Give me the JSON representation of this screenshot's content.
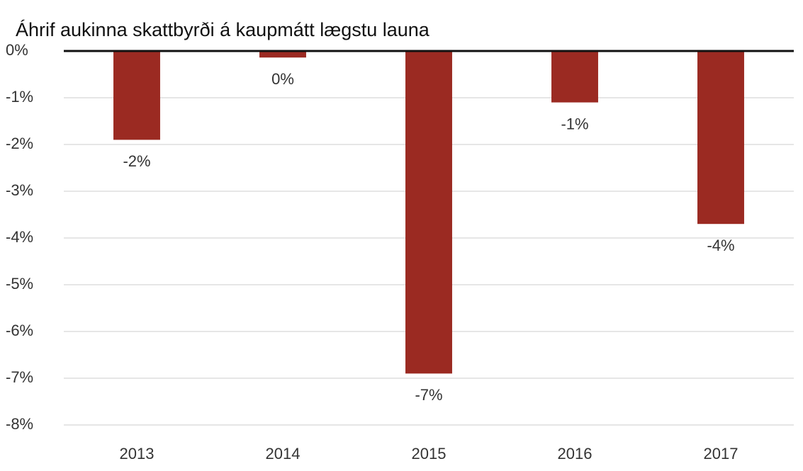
{
  "chart_data": {
    "type": "bar",
    "title": "Áhrif aukinna skattbyrði á kaupmátt lægstu launa",
    "categories": [
      "2013",
      "2014",
      "2015",
      "2016",
      "2017"
    ],
    "values": [
      -1.9,
      -0.14,
      -6.9,
      -1.1,
      -3.7
    ],
    "value_labels": [
      "-2%",
      "0%",
      "-7%",
      "-1%",
      "-4%"
    ],
    "color": "#9b2a22",
    "ylim": [
      -8,
      0
    ],
    "yticks": [
      {
        "value": 0,
        "label": "0%"
      },
      {
        "value": -1,
        "label": "-1%"
      },
      {
        "value": -2,
        "label": "-2%"
      },
      {
        "value": -3,
        "label": "-3%"
      },
      {
        "value": -4,
        "label": "-4%"
      },
      {
        "value": -5,
        "label": "-5%"
      },
      {
        "value": -6,
        "label": "-6%"
      },
      {
        "value": -7,
        "label": "-7%"
      },
      {
        "value": -8,
        "label": "-8%"
      }
    ],
    "grid": true
  }
}
